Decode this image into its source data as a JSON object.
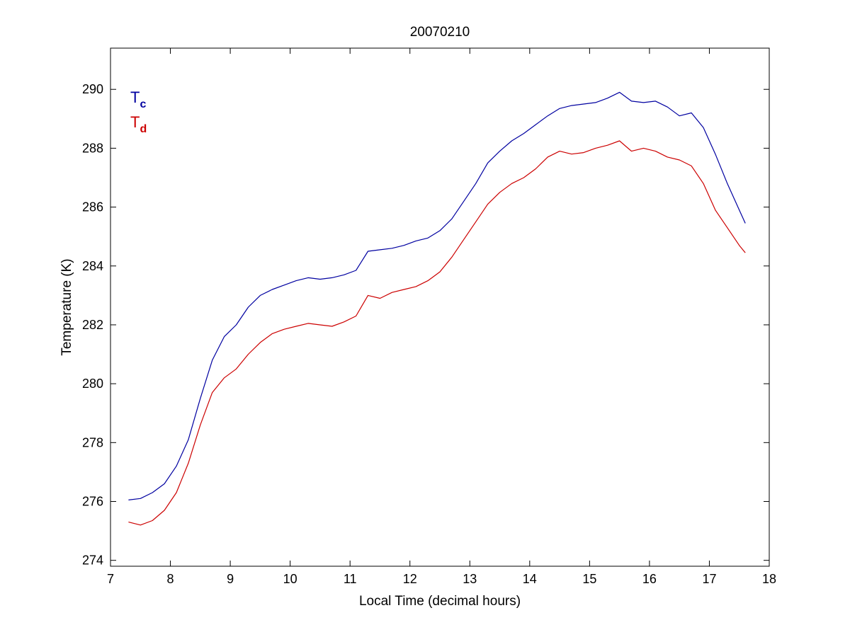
{
  "chart_data": {
    "type": "line",
    "title": "20070210",
    "xlabel": "Local Time (decimal hours)",
    "ylabel": "Temperature (K)",
    "xlim": [
      7,
      18
    ],
    "ylim": [
      273.8,
      291.4
    ],
    "xticks": [
      7,
      8,
      9,
      10,
      11,
      12,
      13,
      14,
      15,
      16,
      17,
      18
    ],
    "yticks": [
      274,
      276,
      278,
      280,
      282,
      284,
      286,
      288,
      290
    ],
    "grid": false,
    "legend_position": "top-left",
    "series": [
      {
        "name": "T",
        "name_subscript": "c",
        "color": "#0000a0",
        "x": [
          7.3,
          7.5,
          7.7,
          7.9,
          8.1,
          8.3,
          8.5,
          8.7,
          8.9,
          9.1,
          9.3,
          9.5,
          9.7,
          9.9,
          10.1,
          10.3,
          10.5,
          10.7,
          10.9,
          11.1,
          11.3,
          11.5,
          11.7,
          11.9,
          12.1,
          12.3,
          12.5,
          12.7,
          12.9,
          13.1,
          13.3,
          13.5,
          13.7,
          13.9,
          14.1,
          14.3,
          14.5,
          14.7,
          14.9,
          15.1,
          15.3,
          15.5,
          15.7,
          15.9,
          16.1,
          16.3,
          16.5,
          16.7,
          16.9,
          17.1,
          17.3,
          17.5,
          17.6
        ],
        "y": [
          276.05,
          276.1,
          276.3,
          276.6,
          277.2,
          278.1,
          279.5,
          280.8,
          281.6,
          282.0,
          282.6,
          283.0,
          283.2,
          283.35,
          283.5,
          283.6,
          283.55,
          283.6,
          283.7,
          283.85,
          284.5,
          284.55,
          284.6,
          284.7,
          284.85,
          284.95,
          285.2,
          285.6,
          286.2,
          286.8,
          287.5,
          287.9,
          288.25,
          288.5,
          288.8,
          289.1,
          289.35,
          289.45,
          289.5,
          289.55,
          289.7,
          289.9,
          289.6,
          289.55,
          289.6,
          289.4,
          289.1,
          289.2,
          288.7,
          287.8,
          286.8,
          285.9,
          285.45
        ]
      },
      {
        "name": "T",
        "name_subscript": "d",
        "color": "#cc0000",
        "x": [
          7.3,
          7.5,
          7.7,
          7.9,
          8.1,
          8.3,
          8.5,
          8.7,
          8.9,
          9.1,
          9.3,
          9.5,
          9.7,
          9.9,
          10.1,
          10.3,
          10.5,
          10.7,
          10.9,
          11.1,
          11.3,
          11.5,
          11.7,
          11.9,
          12.1,
          12.3,
          12.5,
          12.7,
          12.9,
          13.1,
          13.3,
          13.5,
          13.7,
          13.9,
          14.1,
          14.3,
          14.5,
          14.7,
          14.9,
          15.1,
          15.3,
          15.5,
          15.7,
          15.9,
          16.1,
          16.3,
          16.5,
          16.7,
          16.9,
          17.1,
          17.3,
          17.5,
          17.6
        ],
        "y": [
          275.3,
          275.2,
          275.35,
          275.7,
          276.3,
          277.3,
          278.6,
          279.7,
          280.2,
          280.5,
          281.0,
          281.4,
          281.7,
          281.85,
          281.95,
          282.05,
          282.0,
          281.95,
          282.1,
          282.3,
          283.0,
          282.9,
          283.1,
          283.2,
          283.3,
          283.5,
          283.8,
          284.3,
          284.9,
          285.5,
          286.1,
          286.5,
          286.8,
          287.0,
          287.3,
          287.7,
          287.9,
          287.8,
          287.85,
          288.0,
          288.1,
          288.25,
          287.9,
          288.0,
          287.9,
          287.7,
          287.6,
          287.4,
          286.8,
          285.9,
          285.3,
          284.7,
          284.45
        ]
      }
    ]
  }
}
